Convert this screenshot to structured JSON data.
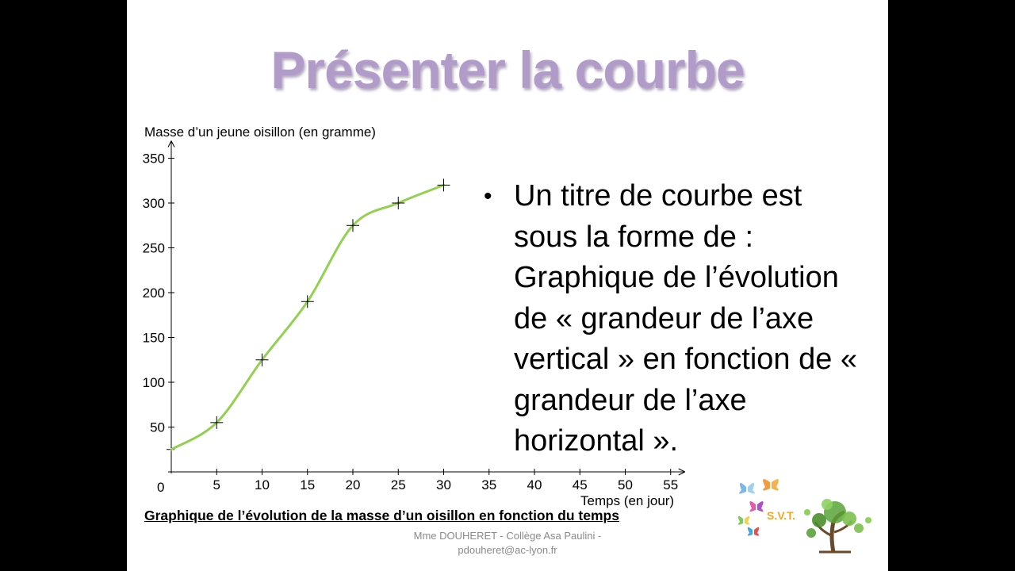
{
  "slide": {
    "title": "Présenter la courbe",
    "bullet_symbol": "•",
    "bullet_text": "Un titre de courbe est sous la forme de : Graphique de l’évolution de « grandeur de l’axe vertical » en fonction de « grandeur de l’axe horizontal ».",
    "caption": "Graphique de l’évolution de la masse d’un oisillon en fonction du temps",
    "footer_line1": "Mme DOUHERET - Collège Asa Paulini -",
    "footer_line2": "pdouheret@ac-lyon.fr",
    "logo_text": "S.V.T."
  },
  "colors": {
    "title": "#b19cc9",
    "curve": "#92d050",
    "axis": "#000000",
    "footer_text": "#8a8a8a",
    "logo_text": "#f5a623"
  },
  "chart_data": {
    "type": "line",
    "xlabel": "Temps (en jour)",
    "ylabel": "Masse d’un jeune oisillon (en gramme)",
    "x_origin_label": "0",
    "x_ticks": [
      5,
      10,
      15,
      20,
      25,
      30,
      35,
      40,
      45,
      50,
      55
    ],
    "y_ticks": [
      50,
      100,
      150,
      200,
      250,
      300,
      350
    ],
    "xlim": [
      0,
      55
    ],
    "ylim": [
      0,
      350
    ],
    "points": [
      {
        "x": 5,
        "y": 55
      },
      {
        "x": 10,
        "y": 125
      },
      {
        "x": 15,
        "y": 190
      },
      {
        "x": 20,
        "y": 275
      },
      {
        "x": 25,
        "y": 300
      },
      {
        "x": 30,
        "y": 320
      }
    ],
    "curve": [
      {
        "x": 0,
        "y": 25
      },
      {
        "x": 5,
        "y": 55
      },
      {
        "x": 10,
        "y": 125
      },
      {
        "x": 15,
        "y": 190
      },
      {
        "x": 20,
        "y": 275
      },
      {
        "x": 25,
        "y": 300
      },
      {
        "x": 30,
        "y": 320
      }
    ],
    "grid": false,
    "legend": "none"
  }
}
